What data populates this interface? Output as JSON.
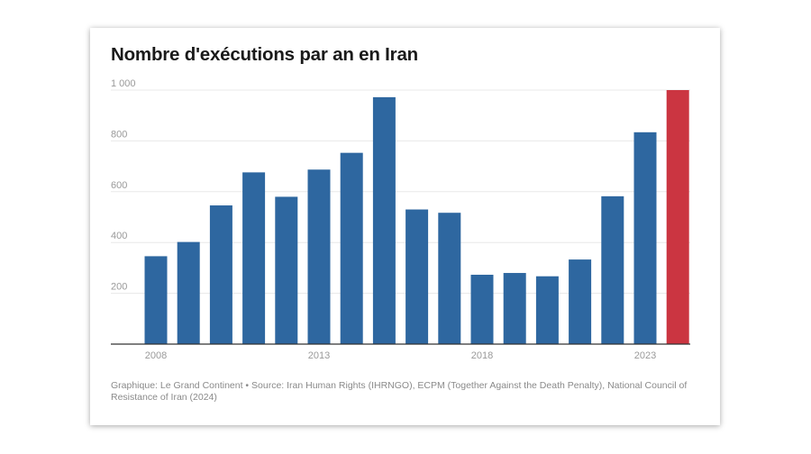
{
  "chart_data": {
    "type": "bar",
    "title": "Nombre d'exécutions par an en Iran",
    "xlabel": "",
    "ylabel": "",
    "categories": [
      "2008",
      "2009",
      "2010",
      "2011",
      "2012",
      "2013",
      "2014",
      "2015",
      "2016",
      "2017",
      "2018",
      "2019",
      "2020",
      "2021",
      "2022",
      "2023",
      "2024"
    ],
    "values": [
      346,
      402,
      546,
      676,
      580,
      687,
      753,
      972,
      530,
      517,
      273,
      280,
      267,
      333,
      582,
      834,
      1000
    ],
    "highlight_index": 16,
    "x_tick_labels": [
      "2008",
      "2013",
      "2018",
      "2023"
    ],
    "y_ticks": [
      200,
      400,
      600,
      800,
      1000
    ],
    "y_tick_labels": [
      "200",
      "400",
      "600",
      "800",
      "1 000"
    ],
    "ylim": [
      0,
      1000
    ],
    "grid": true,
    "colors": {
      "bar": "#2e67a0",
      "highlight": "#cb3541",
      "grid": "#e8e8e8",
      "axis": "#333333"
    }
  },
  "footer": {
    "credit": "Graphique: Le Grand Continent • Source: Iran Human Rights (IHRNGO), ECPM (Together Against the Death Penalty), National Council of Resistance of Iran (2024)"
  }
}
